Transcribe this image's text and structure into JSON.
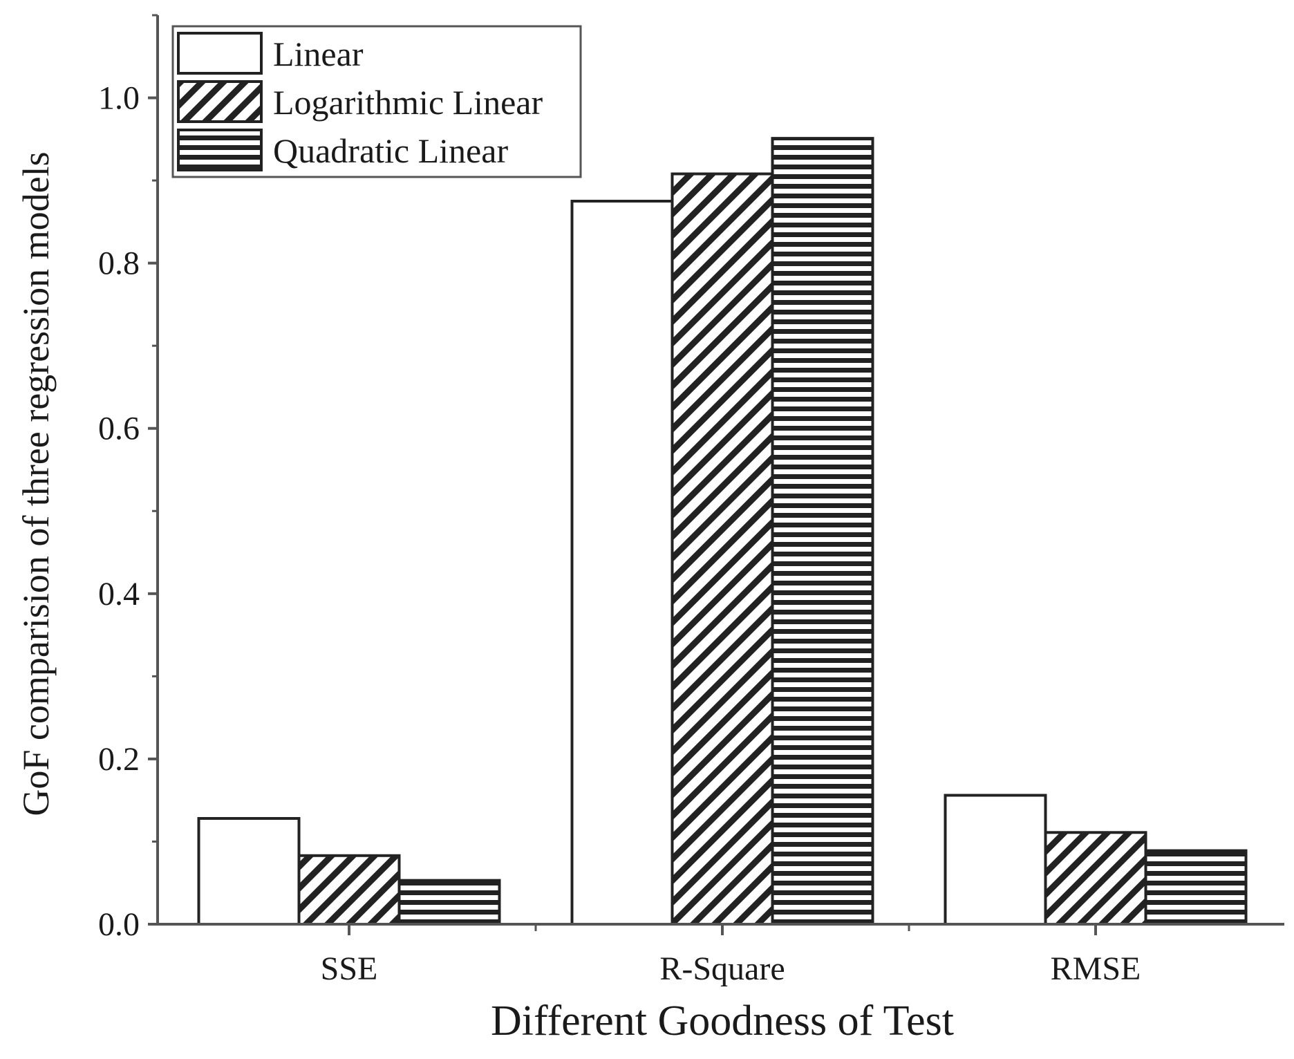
{
  "chart_data": {
    "type": "bar",
    "title": "",
    "xlabel": "Different Goodness of Test",
    "ylabel": "GoF comparision of three regression models",
    "categories": [
      "SSE",
      "R-Square",
      "RMSE"
    ],
    "series": [
      {
        "name": "Linear",
        "pattern": "solid-white",
        "values": [
          0.128,
          0.875,
          0.156
        ]
      },
      {
        "name": "Logarithmic Linear",
        "pattern": "diagonal-hatch",
        "values": [
          0.083,
          0.908,
          0.111
        ]
      },
      {
        "name": "Quadratic Linear",
        "pattern": "horizontal-lines",
        "values": [
          0.053,
          0.951,
          0.089
        ]
      }
    ],
    "ylim": [
      0,
      1.1
    ],
    "yticks": [
      "0.0",
      "0.2",
      "0.4",
      "0.6",
      "0.8",
      "1.0"
    ],
    "ytick_values": [
      0,
      0.2,
      0.4,
      0.6,
      0.8,
      1.0
    ],
    "grid": false,
    "legend_position": "top-left",
    "colors": {
      "stroke": "#222222",
      "fill": "#ffffff"
    }
  }
}
